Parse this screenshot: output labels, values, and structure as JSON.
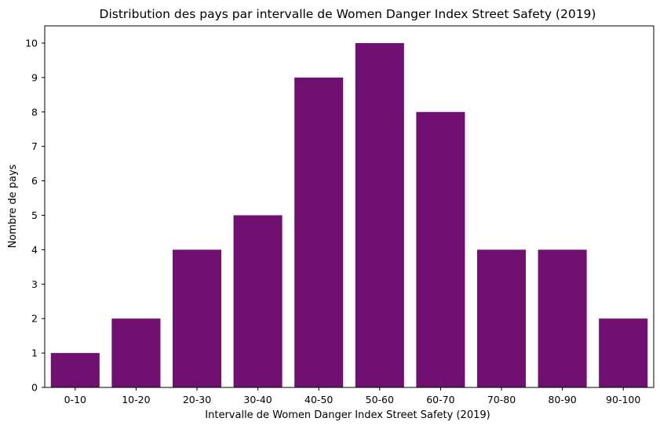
{
  "chart_data": {
    "type": "bar",
    "title": "Distribution des pays par intervalle de Women Danger Index Street Safety (2019)",
    "xlabel": "Intervalle de Women Danger Index Street Safety (2019)",
    "ylabel": "Nombre de pays",
    "categories": [
      "0-10",
      "10-20",
      "20-30",
      "30-40",
      "40-50",
      "50-60",
      "60-70",
      "70-80",
      "80-90",
      "90-100"
    ],
    "values": [
      1,
      2,
      4,
      5,
      9,
      10,
      8,
      4,
      4,
      2
    ],
    "ylim": [
      0,
      10.5
    ],
    "yticks": [
      "0",
      "1",
      "2",
      "3",
      "4",
      "5",
      "6",
      "7",
      "8",
      "9",
      "10"
    ],
    "grid": false,
    "legend": "none",
    "colors": {
      "bar": "#701070",
      "axis": "#000000"
    }
  }
}
